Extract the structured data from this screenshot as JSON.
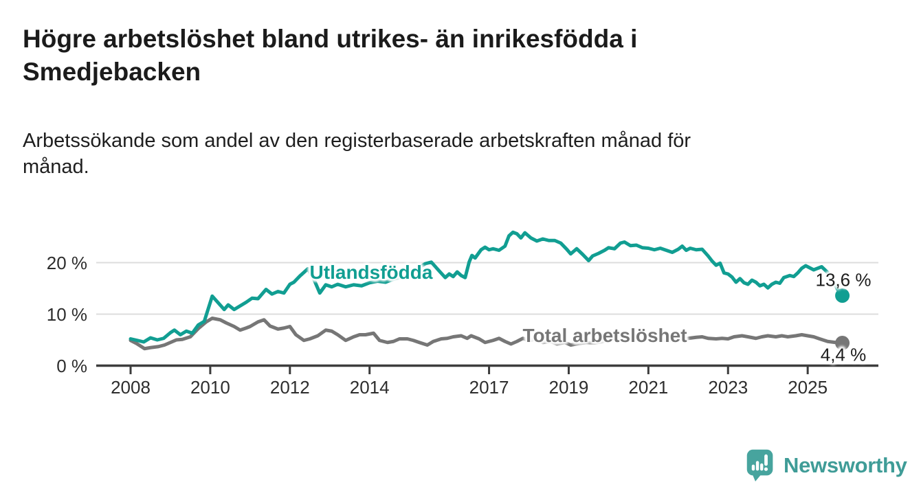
{
  "header": {
    "title_lines": [
      "Högre arbetslöshet bland utrikes- än inrikesfödda i",
      "Smedjebacken"
    ],
    "subtitle_lines": [
      "Arbetssökande som andel av den registerbaserade arbetskraften månad för",
      "månad."
    ]
  },
  "chart_data": {
    "type": "line",
    "title": "Högre arbetslöshet bland utrikes- än inrikesfödda i Smedjebacken",
    "subtitle": "Arbetssökande som andel av den registerbaserade arbetskraften månad för månad.",
    "xlabel": "",
    "ylabel": "",
    "x_axis": {
      "ticks": [
        2008,
        2010,
        2012,
        2014,
        2017,
        2019,
        2021,
        2023,
        2025
      ],
      "range": [
        2007.15,
        2026.8
      ]
    },
    "y_axis": {
      "tick_values": [
        0,
        10,
        20
      ],
      "tick_labels": [
        "0 %",
        "10 %",
        "20 %"
      ],
      "range": [
        0,
        28
      ],
      "grid": true
    },
    "unit": "%",
    "legend_position": "inline-labels-on-line",
    "colors": {
      "grid": "#dcdcdc",
      "axis": "#3c3c3c",
      "tick_text": "#2d2d2d",
      "value_text": "#1c1c1c"
    },
    "series": [
      {
        "name": "Utlandsfödda",
        "color": "#119E92",
        "end_label": "13,6 %",
        "last_value": 13.6,
        "points": [
          [
            2008.0,
            5.2
          ],
          [
            2008.17,
            4.9
          ],
          [
            2008.33,
            4.6
          ],
          [
            2008.5,
            5.4
          ],
          [
            2008.67,
            5.0
          ],
          [
            2008.83,
            5.3
          ],
          [
            2009.0,
            6.4
          ],
          [
            2009.1,
            6.9
          ],
          [
            2009.25,
            6.0
          ],
          [
            2009.4,
            6.7
          ],
          [
            2009.55,
            6.3
          ],
          [
            2009.7,
            7.9
          ],
          [
            2009.85,
            8.6
          ],
          [
            2010.05,
            13.5
          ],
          [
            2010.2,
            12.2
          ],
          [
            2010.35,
            10.9
          ],
          [
            2010.45,
            11.8
          ],
          [
            2010.6,
            10.9
          ],
          [
            2010.75,
            11.6
          ],
          [
            2010.9,
            12.3
          ],
          [
            2011.05,
            13.1
          ],
          [
            2011.2,
            13.0
          ],
          [
            2011.4,
            14.8
          ],
          [
            2011.55,
            13.9
          ],
          [
            2011.7,
            14.4
          ],
          [
            2011.85,
            14.1
          ],
          [
            2012.0,
            15.8
          ],
          [
            2012.1,
            16.2
          ],
          [
            2012.25,
            17.4
          ],
          [
            2012.45,
            18.8
          ],
          [
            2012.6,
            16.8
          ],
          [
            2012.75,
            14.1
          ],
          [
            2012.9,
            15.7
          ],
          [
            2013.05,
            15.3
          ],
          [
            2013.2,
            15.8
          ],
          [
            2013.4,
            15.3
          ],
          [
            2013.6,
            15.7
          ],
          [
            2013.8,
            15.5
          ],
          [
            2014.0,
            16.1
          ],
          [
            2014.2,
            16.4
          ],
          [
            2014.4,
            16.2
          ],
          [
            2014.6,
            16.8
          ],
          [
            2014.8,
            17.2
          ],
          [
            2015.0,
            17.9
          ],
          [
            2015.2,
            18.8
          ],
          [
            2015.4,
            19.8
          ],
          [
            2015.55,
            20.1
          ],
          [
            2015.7,
            18.8
          ],
          [
            2015.9,
            17.1
          ],
          [
            2016.0,
            17.8
          ],
          [
            2016.1,
            17.3
          ],
          [
            2016.2,
            18.2
          ],
          [
            2016.3,
            17.5
          ],
          [
            2016.4,
            17.1
          ],
          [
            2016.5,
            20.1
          ],
          [
            2016.57,
            21.4
          ],
          [
            2016.65,
            20.9
          ],
          [
            2016.8,
            22.5
          ],
          [
            2016.9,
            23.0
          ],
          [
            2017.0,
            22.5
          ],
          [
            2017.1,
            22.7
          ],
          [
            2017.25,
            22.4
          ],
          [
            2017.4,
            23.2
          ],
          [
            2017.5,
            25.2
          ],
          [
            2017.6,
            25.9
          ],
          [
            2017.7,
            25.6
          ],
          [
            2017.8,
            24.8
          ],
          [
            2017.9,
            25.8
          ],
          [
            2018.05,
            24.8
          ],
          [
            2018.2,
            24.2
          ],
          [
            2018.35,
            24.6
          ],
          [
            2018.5,
            24.3
          ],
          [
            2018.65,
            24.3
          ],
          [
            2018.8,
            23.8
          ],
          [
            2018.95,
            22.6
          ],
          [
            2019.05,
            21.7
          ],
          [
            2019.2,
            22.7
          ],
          [
            2019.35,
            21.6
          ],
          [
            2019.5,
            20.4
          ],
          [
            2019.6,
            21.3
          ],
          [
            2019.75,
            21.8
          ],
          [
            2019.9,
            22.4
          ],
          [
            2020.0,
            22.9
          ],
          [
            2020.15,
            22.7
          ],
          [
            2020.3,
            23.8
          ],
          [
            2020.4,
            24.0
          ],
          [
            2020.55,
            23.3
          ],
          [
            2020.7,
            23.4
          ],
          [
            2020.85,
            22.9
          ],
          [
            2021.0,
            22.8
          ],
          [
            2021.15,
            22.5
          ],
          [
            2021.3,
            22.8
          ],
          [
            2021.45,
            22.4
          ],
          [
            2021.6,
            22.0
          ],
          [
            2021.75,
            22.6
          ],
          [
            2021.85,
            23.2
          ],
          [
            2021.95,
            22.4
          ],
          [
            2022.05,
            22.8
          ],
          [
            2022.2,
            22.5
          ],
          [
            2022.35,
            22.6
          ],
          [
            2022.5,
            21.3
          ],
          [
            2022.6,
            20.3
          ],
          [
            2022.7,
            19.5
          ],
          [
            2022.8,
            19.9
          ],
          [
            2022.9,
            18.0
          ],
          [
            2023.0,
            17.8
          ],
          [
            2023.1,
            17.2
          ],
          [
            2023.2,
            16.2
          ],
          [
            2023.3,
            16.9
          ],
          [
            2023.4,
            16.1
          ],
          [
            2023.5,
            15.8
          ],
          [
            2023.6,
            16.6
          ],
          [
            2023.7,
            16.2
          ],
          [
            2023.8,
            15.5
          ],
          [
            2023.9,
            15.8
          ],
          [
            2024.0,
            15.1
          ],
          [
            2024.1,
            15.8
          ],
          [
            2024.2,
            16.2
          ],
          [
            2024.3,
            16.0
          ],
          [
            2024.4,
            17.1
          ],
          [
            2024.55,
            17.5
          ],
          [
            2024.65,
            17.3
          ],
          [
            2024.75,
            18.0
          ],
          [
            2024.85,
            18.9
          ],
          [
            2024.95,
            19.4
          ],
          [
            2025.05,
            19.0
          ],
          [
            2025.15,
            18.6
          ],
          [
            2025.25,
            18.9
          ],
          [
            2025.35,
            19.2
          ],
          [
            2025.5,
            18.1
          ],
          [
            2025.65,
            16.2
          ],
          [
            2025.75,
            14.8
          ],
          [
            2025.87,
            13.6
          ]
        ]
      },
      {
        "name": "Total arbetslöshet",
        "color": "#767676",
        "end_label": "4,4 %",
        "last_value": 4.4,
        "points": [
          [
            2008.0,
            4.9
          ],
          [
            2008.15,
            4.3
          ],
          [
            2008.35,
            3.3
          ],
          [
            2008.5,
            3.5
          ],
          [
            2008.7,
            3.7
          ],
          [
            2008.85,
            4.0
          ],
          [
            2009.0,
            4.5
          ],
          [
            2009.15,
            5.0
          ],
          [
            2009.3,
            5.1
          ],
          [
            2009.5,
            5.6
          ],
          [
            2009.7,
            7.2
          ],
          [
            2009.9,
            8.5
          ],
          [
            2010.05,
            9.2
          ],
          [
            2010.25,
            8.9
          ],
          [
            2010.4,
            8.3
          ],
          [
            2010.6,
            7.6
          ],
          [
            2010.75,
            6.9
          ],
          [
            2010.9,
            7.3
          ],
          [
            2011.0,
            7.6
          ],
          [
            2011.2,
            8.5
          ],
          [
            2011.35,
            8.9
          ],
          [
            2011.5,
            7.7
          ],
          [
            2011.7,
            7.1
          ],
          [
            2011.85,
            7.3
          ],
          [
            2012.0,
            7.6
          ],
          [
            2012.15,
            6.0
          ],
          [
            2012.35,
            4.9
          ],
          [
            2012.5,
            5.2
          ],
          [
            2012.7,
            5.8
          ],
          [
            2012.9,
            6.9
          ],
          [
            2013.05,
            6.7
          ],
          [
            2013.2,
            6.0
          ],
          [
            2013.4,
            4.9
          ],
          [
            2013.6,
            5.6
          ],
          [
            2013.75,
            6.0
          ],
          [
            2013.9,
            6.0
          ],
          [
            2014.1,
            6.3
          ],
          [
            2014.25,
            4.9
          ],
          [
            2014.45,
            4.5
          ],
          [
            2014.6,
            4.7
          ],
          [
            2014.75,
            5.2
          ],
          [
            2014.95,
            5.2
          ],
          [
            2015.1,
            4.9
          ],
          [
            2015.25,
            4.5
          ],
          [
            2015.45,
            4.0
          ],
          [
            2015.6,
            4.7
          ],
          [
            2015.8,
            5.2
          ],
          [
            2015.95,
            5.3
          ],
          [
            2016.1,
            5.6
          ],
          [
            2016.3,
            5.8
          ],
          [
            2016.45,
            5.3
          ],
          [
            2016.55,
            5.8
          ],
          [
            2016.75,
            5.2
          ],
          [
            2016.9,
            4.5
          ],
          [
            2017.1,
            4.9
          ],
          [
            2017.25,
            5.3
          ],
          [
            2017.4,
            4.7
          ],
          [
            2017.55,
            4.2
          ],
          [
            2017.7,
            4.7
          ],
          [
            2017.85,
            5.3
          ],
          [
            2018.0,
            4.9
          ],
          [
            2018.2,
            5.2
          ],
          [
            2018.35,
            4.5
          ],
          [
            2018.55,
            4.7
          ],
          [
            2018.7,
            4.2
          ],
          [
            2018.9,
            4.5
          ],
          [
            2019.05,
            4.0
          ],
          [
            2019.25,
            4.3
          ],
          [
            2019.45,
            4.5
          ],
          [
            2019.65,
            4.4
          ],
          [
            2019.85,
            4.7
          ],
          [
            2020.0,
            5.0
          ],
          [
            2020.2,
            5.9
          ],
          [
            2020.4,
            6.0
          ],
          [
            2020.6,
            5.6
          ],
          [
            2020.8,
            5.4
          ],
          [
            2021.0,
            5.3
          ],
          [
            2021.25,
            5.1
          ],
          [
            2021.5,
            4.9
          ],
          [
            2021.75,
            5.1
          ],
          [
            2022.0,
            5.3
          ],
          [
            2022.2,
            5.5
          ],
          [
            2022.35,
            5.6
          ],
          [
            2022.5,
            5.3
          ],
          [
            2022.7,
            5.2
          ],
          [
            2022.85,
            5.3
          ],
          [
            2023.0,
            5.2
          ],
          [
            2023.15,
            5.6
          ],
          [
            2023.35,
            5.8
          ],
          [
            2023.5,
            5.6
          ],
          [
            2023.7,
            5.3
          ],
          [
            2023.85,
            5.6
          ],
          [
            2024.0,
            5.8
          ],
          [
            2024.2,
            5.6
          ],
          [
            2024.35,
            5.8
          ],
          [
            2024.5,
            5.6
          ],
          [
            2024.7,
            5.8
          ],
          [
            2024.85,
            6.0
          ],
          [
            2025.0,
            5.8
          ],
          [
            2025.15,
            5.6
          ],
          [
            2025.3,
            5.2
          ],
          [
            2025.5,
            4.7
          ],
          [
            2025.7,
            4.5
          ],
          [
            2025.87,
            4.4
          ]
        ]
      }
    ]
  },
  "footer": {
    "brand": "Newsworthy",
    "logo_icon": "speech-bubble-bar-chart",
    "icon_color": "#47A49E",
    "text_color": "#3F9C97"
  }
}
